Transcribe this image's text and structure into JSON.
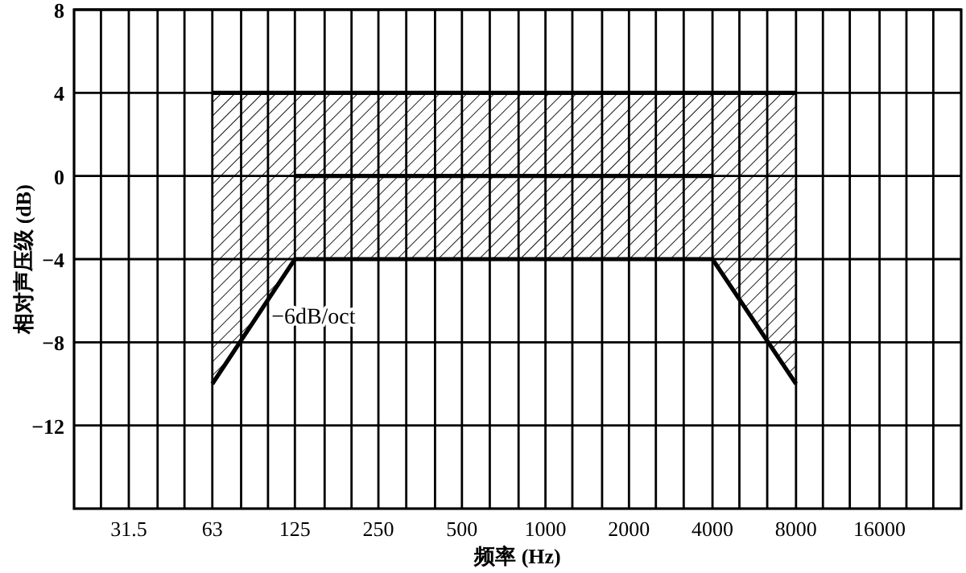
{
  "chart_data": {
    "type": "line",
    "xlabel": "频率 (Hz)",
    "ylabel": "相对声压级 (dB)",
    "log": "x",
    "grid": true,
    "xlim": [
      20,
      31500
    ],
    "ylim": [
      -16,
      8
    ],
    "xticks": [
      {
        "value": 25,
        "label": null
      },
      31.5,
      {
        "value": 40,
        "label": null
      },
      {
        "value": 50,
        "label": null
      },
      63,
      {
        "value": 80,
        "label": null
      },
      {
        "value": 100,
        "label": null
      },
      125,
      {
        "value": 160,
        "label": null
      },
      {
        "value": 200,
        "label": null
      },
      250,
      {
        "value": 315,
        "label": null
      },
      {
        "value": 400,
        "label": null
      },
      500,
      {
        "value": 630,
        "label": null
      },
      {
        "value": 800,
        "label": null
      },
      1000,
      {
        "value": 1250,
        "label": null
      },
      {
        "value": 1600,
        "label": null
      },
      2000,
      {
        "value": 2500,
        "label": null
      },
      {
        "value": 3150,
        "label": null
      },
      4000,
      {
        "value": 5000,
        "label": null
      },
      {
        "value": 6300,
        "label": null
      },
      8000,
      {
        "value": 10000,
        "label": null
      },
      {
        "value": 12500,
        "label": null
      },
      16000,
      {
        "value": 20000,
        "label": null
      },
      {
        "value": 25000,
        "label": null
      }
    ],
    "yticks": [
      8,
      4,
      0,
      -4,
      -8,
      -12
    ],
    "annotations": [
      {
        "text": "−6dB/oct",
        "x": 90,
        "y": -7
      }
    ],
    "series": [
      {
        "x": [
          63,
          125,
          4000,
          8000
        ],
        "values": [
          null,
          0,
          0,
          null
        ],
        "lower": [
          -10,
          -4,
          -4,
          -10
        ],
        "upper": [
          4,
          4,
          4,
          4
        ],
        "color": "#000000"
      },
      {
        "x": [
          63,
          8000
        ],
        "values": [
          4,
          4
        ],
        "color": "#000000"
      },
      {
        "x": [
          63,
          125,
          4000,
          8000
        ],
        "values": [
          -10,
          -4,
          -4,
          -10
        ],
        "color": "#000000"
      }
    ]
  }
}
